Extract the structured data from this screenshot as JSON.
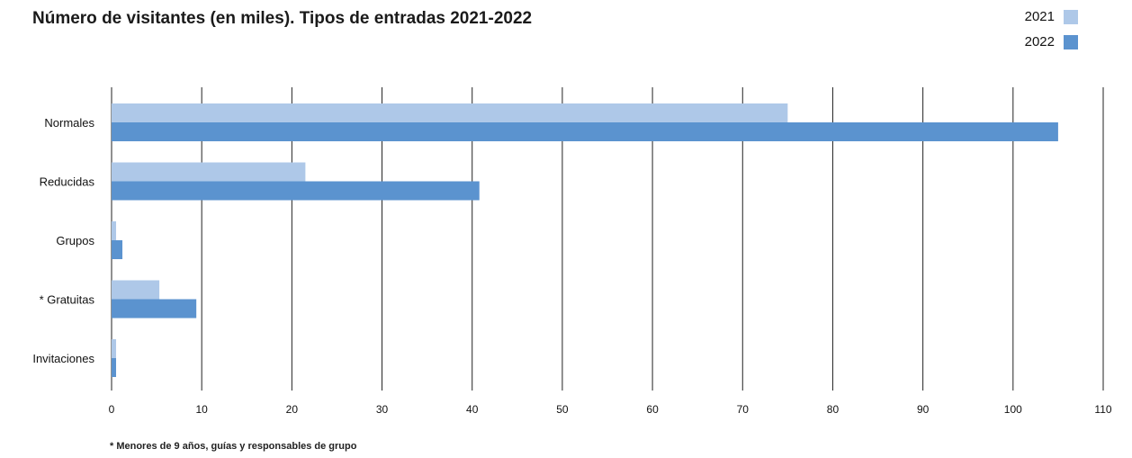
{
  "chart_data": {
    "type": "bar",
    "orientation": "horizontal",
    "title": "Número de visitantes (en miles). Tipos de entradas 2021-2022",
    "categories": [
      "Normales",
      "Reducidas",
      "Grupos",
      "* Gratuitas",
      "Invitaciones"
    ],
    "series": [
      {
        "name": "2021",
        "color": "#aec8e8",
        "values": [
          75,
          21.5,
          0.5,
          5.3,
          0.5
        ]
      },
      {
        "name": "2022",
        "color": "#5b93cf",
        "values": [
          105,
          40.8,
          1.2,
          9.4,
          0.5
        ]
      }
    ],
    "xlim": [
      0,
      110
    ],
    "xticks": [
      0,
      10,
      20,
      30,
      40,
      50,
      60,
      70,
      80,
      90,
      100,
      110
    ],
    "grid": true,
    "legend_position": "top-right",
    "footnote": "* Menores de 9 años, guías y responsables de grupo"
  }
}
